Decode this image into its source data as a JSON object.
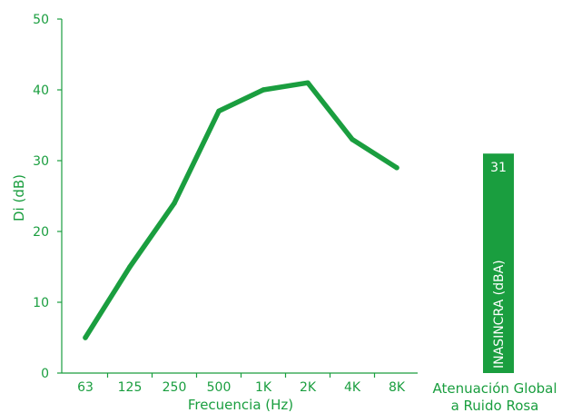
{
  "chart_data": {
    "type": "line",
    "colors": {
      "axis": "#1a9e3f",
      "series": "#1a9e3f",
      "bar": "#1a9e3f"
    },
    "xlabel": "Frecuencia (Hz)",
    "ylabel": "Di (dB)",
    "ylim": [
      0,
      50
    ],
    "yticks": [
      0,
      10,
      20,
      30,
      40,
      50
    ],
    "categories": [
      "63",
      "125",
      "250",
      "500",
      "1K",
      "2K",
      "4K",
      "8K"
    ],
    "series": [
      {
        "values": [
          5,
          15,
          24,
          37,
          40,
          41,
          33,
          29
        ]
      }
    ],
    "global_bar": {
      "value": 31,
      "label": "INASINCRA (dBA)",
      "caption": [
        "Atenuación Global",
        "a Ruido Rosa"
      ]
    }
  }
}
